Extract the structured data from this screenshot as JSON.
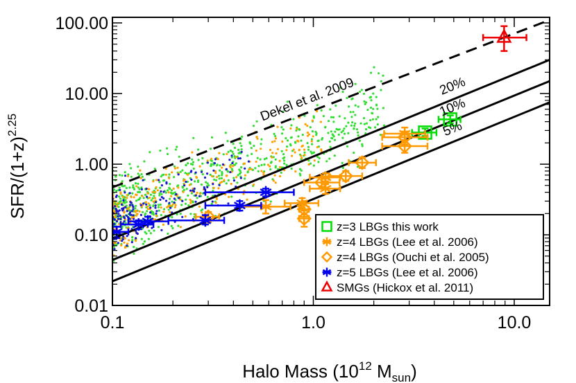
{
  "chart_data": {
    "type": "scatter",
    "xlabel": {
      "prefix": "Halo Mass (10",
      "sup": "12",
      "mid": " M",
      "sub": "sun",
      "suffix": ")"
    },
    "ylabel": {
      "prefix": "SFR/(1+z)",
      "sup": "2.25"
    },
    "x_scale": "log",
    "y_scale": "log",
    "xlim": [
      0.1,
      15
    ],
    "ylim": [
      0.01,
      120
    ],
    "x_ticks": [
      {
        "value": 0.1,
        "label": "0.1"
      },
      {
        "value": 1.0,
        "label": "1.0"
      },
      {
        "value": 10.0,
        "label": "10.0"
      }
    ],
    "y_ticks": [
      {
        "value": 0.01,
        "label": "0.01"
      },
      {
        "value": 0.1,
        "label": "0.10"
      },
      {
        "value": 1.0,
        "label": "1.00"
      },
      {
        "value": 10.0,
        "label": "10.00"
      },
      {
        "value": 100.0,
        "label": "100.00"
      }
    ],
    "lines": [
      {
        "label": "Dekel et al. 2009",
        "style": "dashed",
        "x": [
          0.1,
          15
        ],
        "y": [
          0.47,
          110
        ],
        "label_at": 0.98
      },
      {
        "label": "20%",
        "style": "solid",
        "x": [
          0.1,
          15
        ],
        "y": [
          0.088,
          30
        ],
        "label_at": 5.2
      },
      {
        "label": "10%",
        "style": "solid",
        "x": [
          0.1,
          15
        ],
        "y": [
          0.044,
          15
        ],
        "label_at": 5.2
      },
      {
        "label": "5%",
        "style": "solid",
        "x": [
          0.1,
          15
        ],
        "y": [
          0.022,
          7.5
        ],
        "label_at": 5.2
      }
    ],
    "series": [
      {
        "name": "z=3 LBGs this work",
        "marker": "square",
        "color": "#00dd00",
        "points": [
          {
            "x": 3.6,
            "y": 2.8,
            "x_lo": 3.1,
            "x_hi": 4.1,
            "y_lo": 2.5,
            "y_hi": 3.2
          },
          {
            "x": 4.8,
            "y": 4.3,
            "x_lo": 4.2,
            "x_hi": 5.4,
            "y_lo": 3.8,
            "y_hi": 4.9
          }
        ]
      },
      {
        "name": "z=4 LBGs (Lee et al. 2006)",
        "marker": "asterisk",
        "color": "#ff9900",
        "points": [
          {
            "x": 0.58,
            "y": 0.25,
            "x_lo": 0.43,
            "x_hi": 0.77,
            "y_lo": 0.2,
            "y_hi": 0.31
          },
          {
            "x": 0.88,
            "y": 0.28,
            "x_lo": 0.72,
            "x_hi": 1.06,
            "y_lo": 0.24,
            "y_hi": 0.33
          },
          {
            "x": 1.15,
            "y": 0.45,
            "x_lo": 0.96,
            "x_hi": 1.36,
            "y_lo": 0.38,
            "y_hi": 0.52
          },
          {
            "x": 1.15,
            "y": 0.65,
            "x_lo": 0.96,
            "x_hi": 1.36,
            "y_lo": 0.57,
            "y_hi": 0.74
          },
          {
            "x": 2.85,
            "y": 2.7,
            "x_lo": 2.25,
            "x_hi": 3.6,
            "y_lo": 2.2,
            "y_hi": 3.3
          }
        ]
      },
      {
        "name": "z=4 LBGs (Ouchi et al. 2005)",
        "marker": "diamond",
        "color": "#ff9900",
        "points": [
          {
            "x": 0.3,
            "y": 0.18,
            "x_lo": 0.26,
            "x_hi": 0.34,
            "y_lo": 0.15,
            "y_hi": 0.21
          },
          {
            "x": 0.9,
            "y": 0.17,
            "x_lo": 0.85,
            "x_hi": 0.95,
            "y_lo": 0.13,
            "y_hi": 0.22
          },
          {
            "x": 0.9,
            "y": 0.23,
            "x_lo": 0.85,
            "x_hi": 0.95,
            "y_lo": 0.18,
            "y_hi": 0.3
          },
          {
            "x": 1.1,
            "y": 0.55,
            "x_lo": 0.9,
            "x_hi": 1.35,
            "y_lo": 0.46,
            "y_hi": 0.66
          },
          {
            "x": 1.45,
            "y": 0.68,
            "x_lo": 1.2,
            "x_hi": 1.75,
            "y_lo": 0.58,
            "y_hi": 0.8
          },
          {
            "x": 1.75,
            "y": 1.05,
            "x_lo": 1.5,
            "x_hi": 2.05,
            "y_lo": 0.88,
            "y_hi": 1.25
          },
          {
            "x": 2.85,
            "y": 1.8,
            "x_lo": 2.2,
            "x_hi": 3.7,
            "y_lo": 1.45,
            "y_hi": 2.2
          },
          {
            "x": 2.85,
            "y": 2.4,
            "x_lo": 2.2,
            "x_hi": 3.7,
            "y_lo": 1.9,
            "y_hi": 2.9
          }
        ]
      },
      {
        "name": "z=5 LBGs (Lee et al. 2006)",
        "marker": "asterisk",
        "color": "#0000ee",
        "points": [
          {
            "x": 0.105,
            "y": 0.11,
            "x_lo": 0.1,
            "x_hi": 0.12,
            "y_lo": 0.09,
            "y_hi": 0.13
          },
          {
            "x": 0.135,
            "y": 0.14,
            "x_lo": 0.11,
            "x_hi": 0.16,
            "y_lo": 0.12,
            "y_hi": 0.16
          },
          {
            "x": 0.15,
            "y": 0.155,
            "x_lo": 0.12,
            "x_hi": 0.19,
            "y_lo": 0.14,
            "y_hi": 0.18
          },
          {
            "x": 0.29,
            "y": 0.16,
            "x_lo": 0.19,
            "x_hi": 0.36,
            "y_lo": 0.14,
            "y_hi": 0.19
          },
          {
            "x": 0.43,
            "y": 0.26,
            "x_lo": 0.29,
            "x_hi": 0.55,
            "y_lo": 0.22,
            "y_hi": 0.3
          },
          {
            "x": 0.58,
            "y": 0.4,
            "x_lo": 0.29,
            "x_hi": 0.8,
            "y_lo": 0.35,
            "y_hi": 0.45
          }
        ]
      },
      {
        "name": "SMGs (Hickox et al. 2011)",
        "marker": "triangle",
        "color": "#ee0000",
        "points": [
          {
            "x": 8.9,
            "y": 62,
            "x_lo": 7.0,
            "x_hi": 11.5,
            "y_lo": 40,
            "y_hi": 90
          }
        ]
      }
    ],
    "scatter_clouds": [
      {
        "color": "#33dd33",
        "count": 720,
        "x_range": [
          0.1,
          2.3
        ],
        "center_frac": 0.29,
        "scatter": 0.27
      },
      {
        "color": "#ffa000",
        "count": 300,
        "x_range": [
          0.1,
          1.1
        ],
        "center_frac": 0.26,
        "scatter": 0.24
      },
      {
        "color": "#1a1acc",
        "count": 170,
        "x_range": [
          0.1,
          0.48
        ],
        "center_frac": 0.23,
        "scatter": 0.2
      }
    ],
    "legend": {
      "position": "bottom-right"
    }
  }
}
